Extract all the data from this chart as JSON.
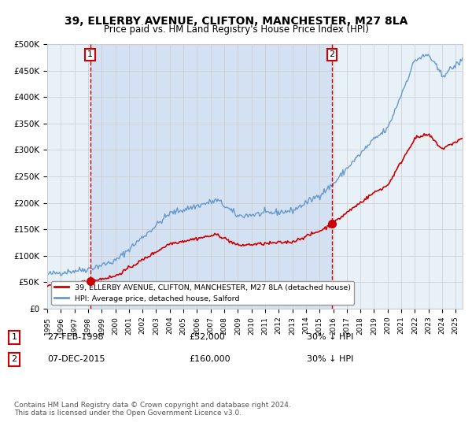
{
  "title": "39, ELLERBY AVENUE, CLIFTON, MANCHESTER, M27 8LA",
  "subtitle": "Price paid vs. HM Land Registry's House Price Index (HPI)",
  "legend_line1": "39, ELLERBY AVENUE, CLIFTON, MANCHESTER, M27 8LA (detached house)",
  "legend_line2": "HPI: Average price, detached house, Salford",
  "sale1_date": "27-FEB-1998",
  "sale1_price": 52000,
  "sale1_year": 1998.15,
  "sale2_date": "07-DEC-2015",
  "sale2_price": 160000,
  "sale2_year": 2015.92,
  "note1_date": "27-FEB-1998",
  "note1_price": "£52,000",
  "note1_hpi": "30% ↓ HPI",
  "note2_date": "07-DEC-2015",
  "note2_price": "£160,000",
  "note2_hpi": "30% ↓ HPI",
  "footer": "Contains HM Land Registry data © Crown copyright and database right 2024.\nThis data is licensed under the Open Government Licence v3.0.",
  "property_color": "#cc0000",
  "hpi_color": "#6699cc",
  "background_color": "#ffffff",
  "plot_bg_color": "#e8f0f8",
  "grid_color": "#cccccc",
  "shade_color": "#c8d8ee",
  "xmin": 1995,
  "xmax": 2025.5,
  "ymin": 0,
  "ymax": 500000
}
